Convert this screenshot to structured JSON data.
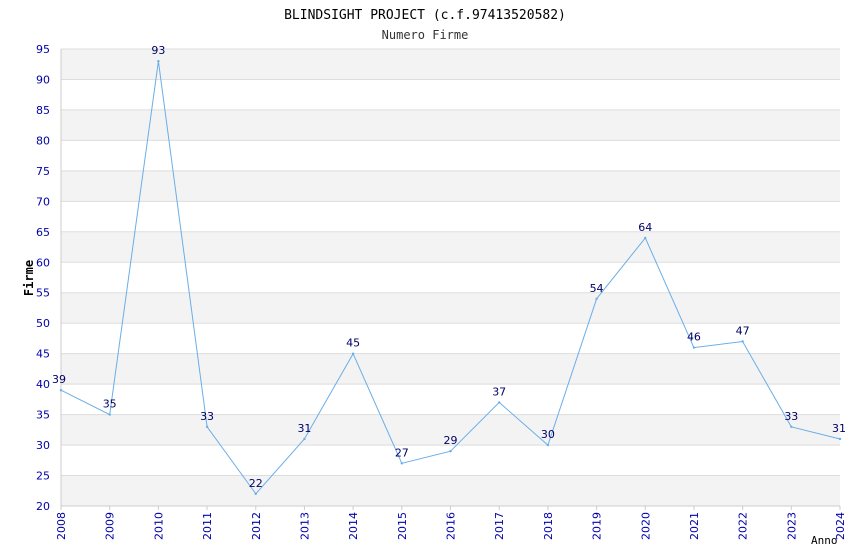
{
  "chart_data": {
    "type": "line",
    "title": "BLINDSIGHT PROJECT (c.f.97413520582)",
    "subtitle": "Numero Firme",
    "xlabel": "Anno",
    "ylabel": "Firme",
    "x": [
      "2008",
      "2009",
      "2010",
      "2011",
      "2012",
      "2013",
      "2014",
      "2015",
      "2016",
      "2017",
      "2018",
      "2019",
      "2020",
      "2021",
      "2022",
      "2023",
      "2024"
    ],
    "series": [
      {
        "values": [
          39,
          35,
          93,
          33,
          22,
          31,
          45,
          27,
          29,
          37,
          30,
          54,
          64,
          46,
          47,
          33,
          31
        ]
      }
    ],
    "ylim": [
      20,
      95
    ],
    "yticks": [
      20,
      25,
      30,
      35,
      40,
      45,
      50,
      55,
      60,
      65,
      70,
      75,
      80,
      85,
      90,
      95
    ],
    "grid": true,
    "colors": {
      "line": "#6aaee8",
      "axis_text": "#0000aa",
      "data_label": "#000066",
      "band": "#f3f3f3",
      "gridline": "#dddddd",
      "title": "#000000"
    }
  }
}
